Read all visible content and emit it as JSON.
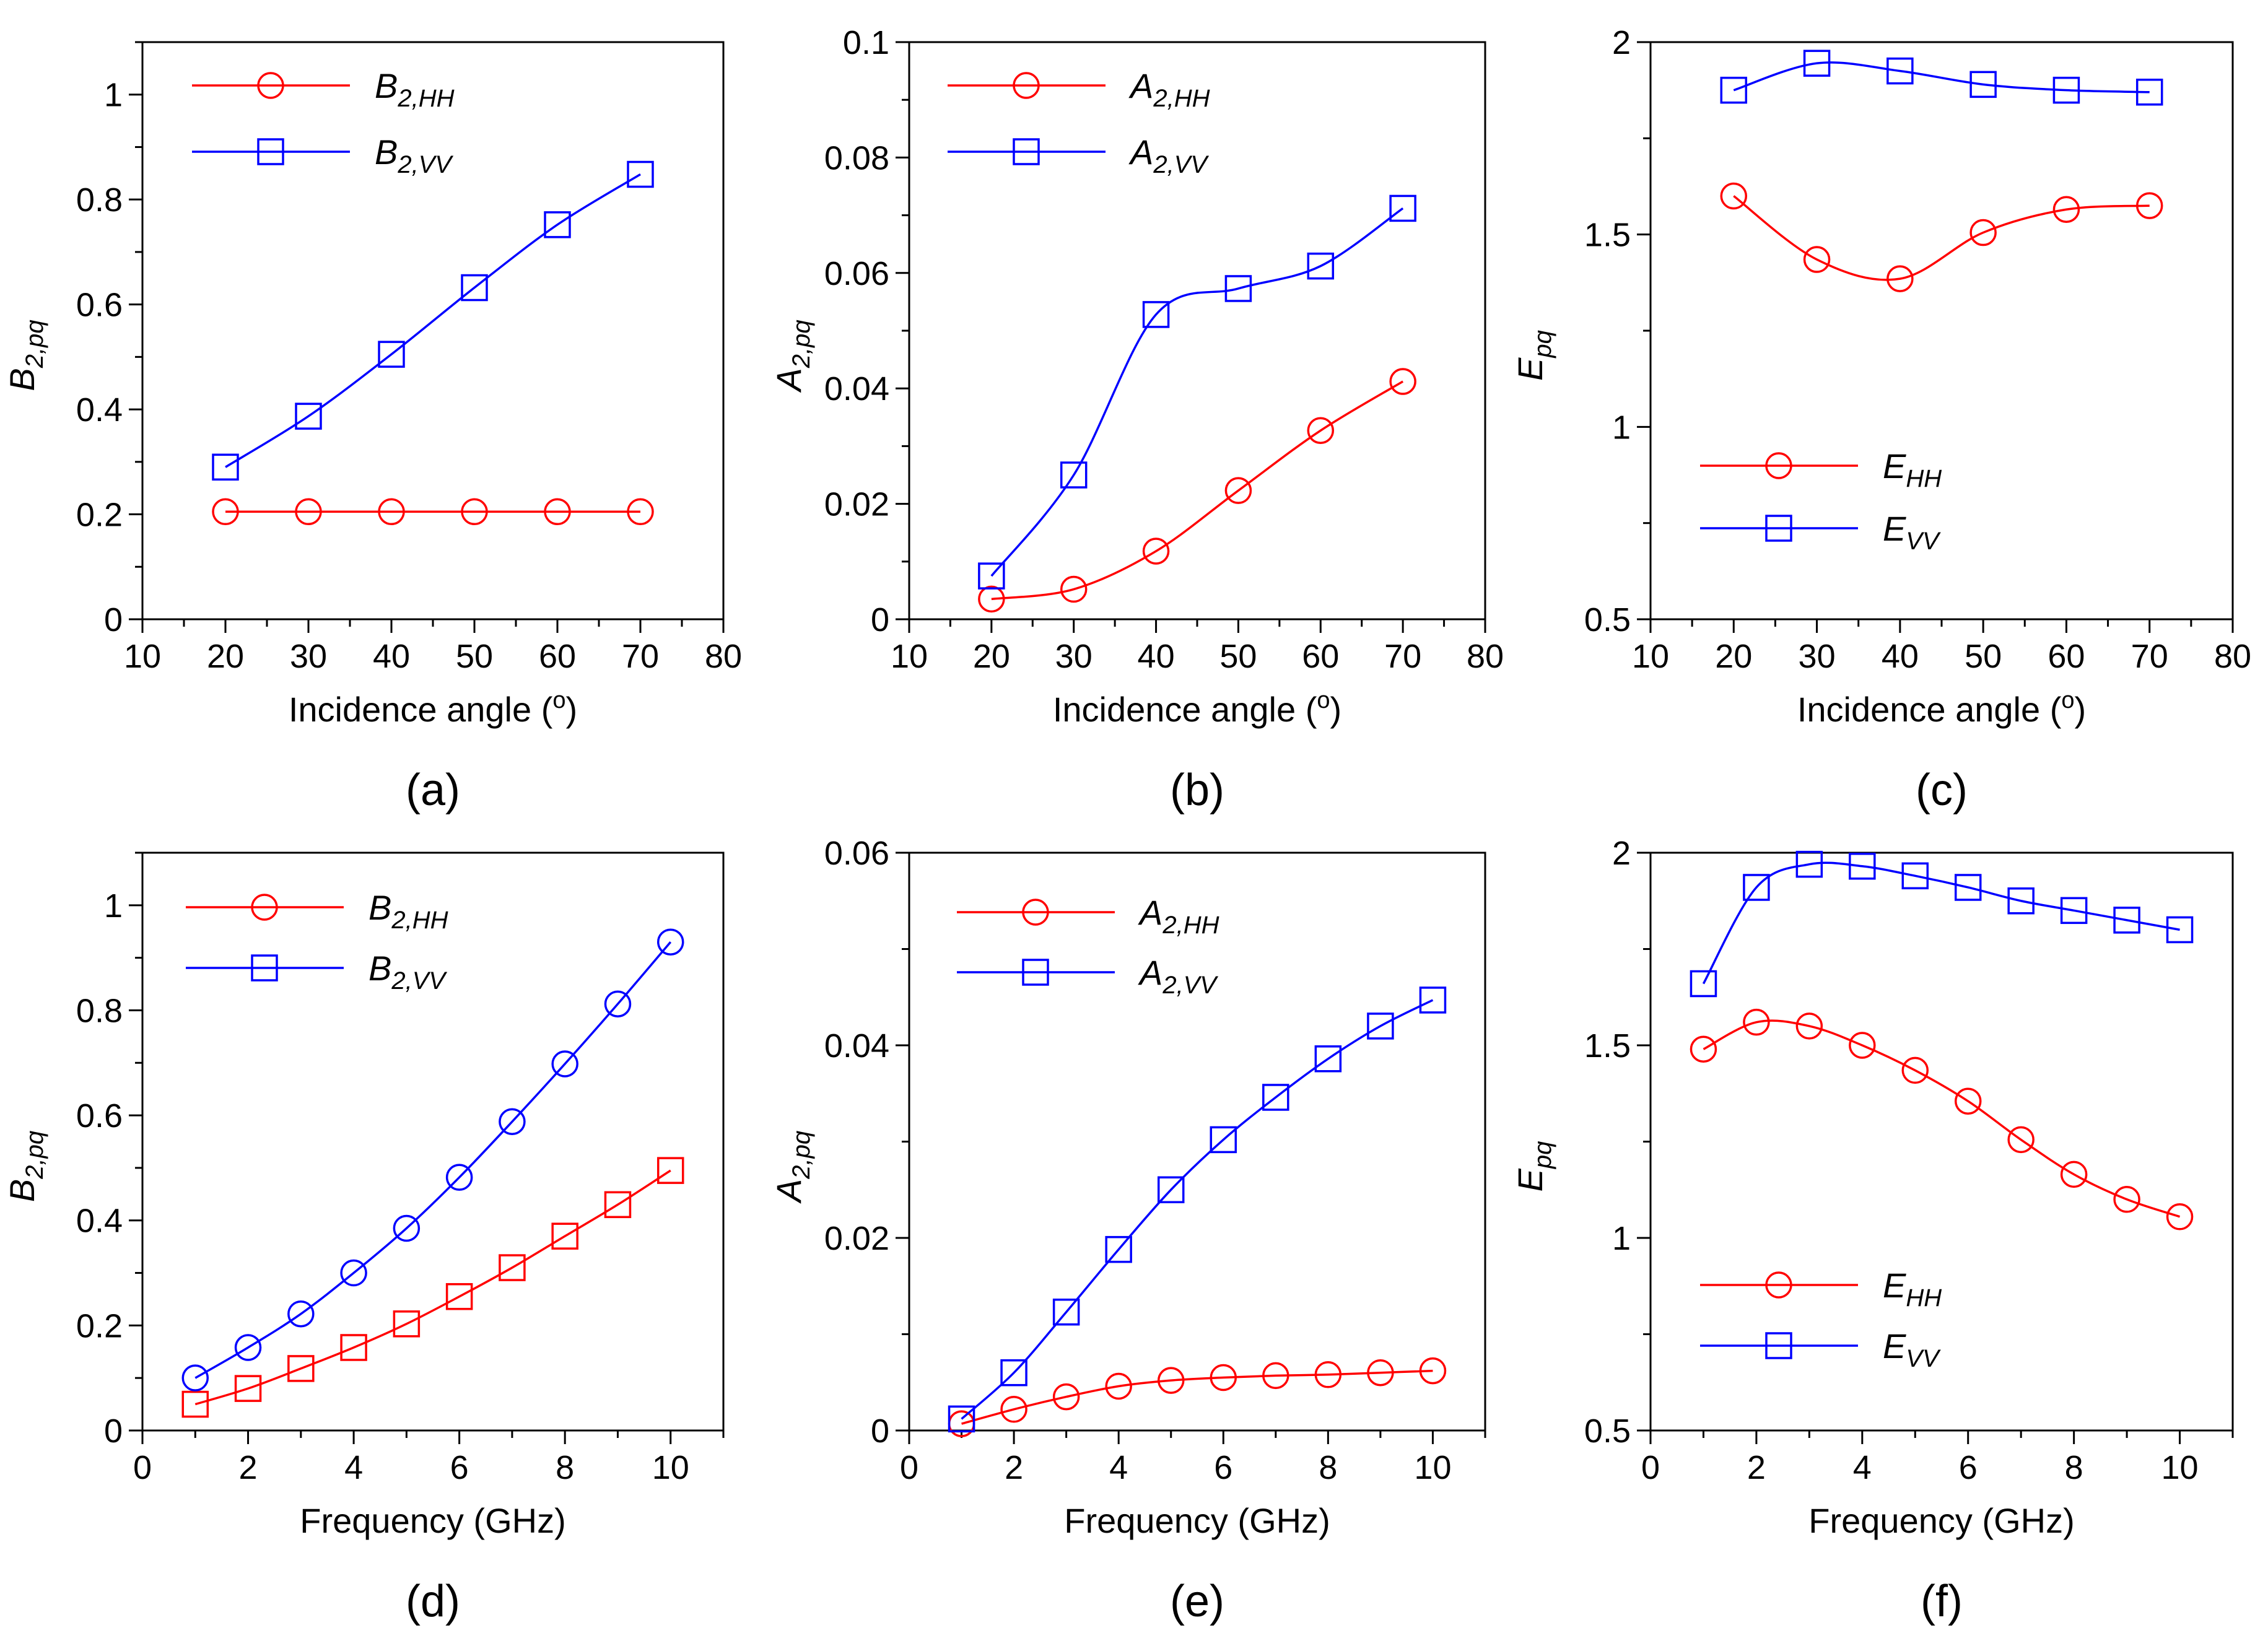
{
  "chart_data": [
    {
      "type": "line",
      "panel_label": "(a)",
      "xlabel": "Incidence angle (o)",
      "ylabel": "B2,pq",
      "xlim": [
        10,
        80
      ],
      "xticks": [
        "10",
        "20",
        "30",
        "40",
        "50",
        "60",
        "70",
        "80"
      ],
      "ylim": [
        0,
        1.1
      ],
      "yticks": [
        "0",
        "0.2",
        "0.4",
        "0.6",
        "0.8",
        "1"
      ],
      "legend_position": "top-left",
      "series": [
        {
          "name": "B2,HH",
          "base": "B",
          "sub": "2,HH",
          "color": "#ff0000",
          "marker": "circle",
          "x": [
            20,
            30,
            40,
            50,
            60,
            70
          ],
          "y": [
            0.205,
            0.205,
            0.205,
            0.205,
            0.205,
            0.205
          ]
        },
        {
          "name": "B2,VV",
          "base": "B",
          "sub": "2,VV",
          "color": "#0000ff",
          "marker": "square",
          "x": [
            20,
            30,
            40,
            50,
            60,
            70
          ],
          "y": [
            0.29,
            0.387,
            0.505,
            0.632,
            0.752,
            0.848
          ]
        }
      ]
    },
    {
      "type": "line",
      "panel_label": "(b)",
      "xlabel": "Incidence angle (o)",
      "ylabel": "A2,pq",
      "xlim": [
        10,
        80
      ],
      "xticks": [
        "10",
        "20",
        "30",
        "40",
        "50",
        "60",
        "70",
        "80"
      ],
      "ylim": [
        0,
        0.1
      ],
      "yticks": [
        "0",
        "0.02",
        "0.04",
        "0.06",
        "0.08",
        "0.1"
      ],
      "legend_position": "top-left",
      "series": [
        {
          "name": "A2,HH",
          "base": "A",
          "sub": "2,HH",
          "color": "#ff0000",
          "marker": "circle",
          "x": [
            20,
            30,
            40,
            50,
            60,
            70
          ],
          "y": [
            0.0035,
            0.0052,
            0.0118,
            0.0223,
            0.0327,
            0.0412
          ]
        },
        {
          "name": "A2,VV",
          "base": "A",
          "sub": "2,VV",
          "color": "#0000ff",
          "marker": "square",
          "x": [
            20,
            30,
            40,
            50,
            60,
            70
          ],
          "y": [
            0.0075,
            0.025,
            0.0528,
            0.0573,
            0.0612,
            0.0712
          ]
        }
      ]
    },
    {
      "type": "line",
      "panel_label": "(c)",
      "xlabel": "Incidence angle (o)",
      "ylabel": "Epq",
      "xlim": [
        10,
        80
      ],
      "xticks": [
        "10",
        "20",
        "30",
        "40",
        "50",
        "60",
        "70",
        "80"
      ],
      "ylim": [
        0.5,
        2
      ],
      "yticks": [
        "0.5",
        "1",
        "1.5",
        "2"
      ],
      "legend_position": "center-left",
      "series": [
        {
          "name": "EHH",
          "base": "E",
          "sub": "HH",
          "color": "#ff0000",
          "marker": "circle",
          "x": [
            20,
            30,
            40,
            50,
            60,
            70
          ],
          "y": [
            1.6,
            1.435,
            1.385,
            1.505,
            1.565,
            1.575
          ]
        },
        {
          "name": "EVV",
          "base": "E",
          "sub": "VV",
          "color": "#0000ff",
          "marker": "square",
          "x": [
            20,
            30,
            40,
            50,
            60,
            70
          ],
          "y": [
            1.875,
            1.945,
            1.925,
            1.89,
            1.875,
            1.87
          ]
        }
      ]
    },
    {
      "type": "line",
      "panel_label": "(d)",
      "xlabel": "Frequency (GHz)",
      "ylabel": "B2,pq",
      "xlim": [
        0,
        11
      ],
      "xticks": [
        "0",
        "2",
        "4",
        "6",
        "8",
        "10"
      ],
      "ylim": [
        0,
        1.1
      ],
      "yticks": [
        "0",
        "0.2",
        "0.4",
        "0.6",
        "0.8",
        "1"
      ],
      "legend_position": "top-left",
      "series": [
        {
          "name": "B2,HH",
          "base": "B",
          "sub": "2,HH",
          "color": "#ff0000",
          "marker": "circle",
          "legend_marker": "circle",
          "point_marker": "square",
          "point_color": "#ff0000",
          "x": [
            1,
            2,
            3,
            4,
            5,
            6,
            7,
            8,
            9,
            10
          ],
          "y": [
            0.05,
            0.08,
            0.118,
            0.158,
            0.203,
            0.255,
            0.31,
            0.37,
            0.43,
            0.495
          ]
        },
        {
          "name": "B2,VV",
          "base": "B",
          "sub": "2,VV",
          "color": "#0000ff",
          "marker": "square",
          "legend_marker": "square",
          "point_marker": "circle",
          "point_color": "#0000ff",
          "x": [
            1,
            2,
            3,
            4,
            5,
            6,
            7,
            8,
            9,
            10
          ],
          "y": [
            0.1,
            0.158,
            0.222,
            0.3,
            0.385,
            0.482,
            0.588,
            0.698,
            0.812,
            0.93
          ]
        }
      ]
    },
    {
      "type": "line",
      "panel_label": "(e)",
      "xlabel": "Frequency (GHz)",
      "ylabel": "A2,pq",
      "xlim": [
        0,
        11
      ],
      "xticks": [
        "0",
        "2",
        "4",
        "6",
        "8",
        "10"
      ],
      "ylim": [
        0,
        0.06
      ],
      "yticks": [
        "0",
        "0.02",
        "0.04",
        "0.06"
      ],
      "legend_position": "top-left",
      "series": [
        {
          "name": "A2,HH",
          "base": "A",
          "sub": "2,HH",
          "color": "#ff0000",
          "marker": "circle",
          "x": [
            1,
            2,
            3,
            4,
            5,
            6,
            7,
            8,
            9,
            10
          ],
          "y": [
            0.0007,
            0.0022,
            0.0035,
            0.0046,
            0.0052,
            0.0055,
            0.0057,
            0.0058,
            0.006,
            0.0062
          ]
        },
        {
          "name": "A2,VV",
          "base": "A",
          "sub": "2,VV",
          "color": "#0000ff",
          "marker": "square",
          "x": [
            1,
            2,
            3,
            4,
            5,
            6,
            7,
            8,
            9,
            10
          ],
          "y": [
            0.0012,
            0.006,
            0.0123,
            0.0188,
            0.025,
            0.0302,
            0.0346,
            0.0386,
            0.042,
            0.0447
          ]
        }
      ]
    },
    {
      "type": "line",
      "panel_label": "(f)",
      "xlabel": "Frequency (GHz)",
      "ylabel": "Epq",
      "xlim": [
        0,
        11
      ],
      "xticks": [
        "0",
        "2",
        "4",
        "6",
        "8",
        "10"
      ],
      "ylim": [
        0.5,
        2
      ],
      "yticks": [
        "0.5",
        "1",
        "1.5",
        "2"
      ],
      "legend_position": "center-left",
      "series": [
        {
          "name": "EHH",
          "base": "E",
          "sub": "HH",
          "color": "#ff0000",
          "marker": "circle",
          "x": [
            1,
            2,
            3,
            4,
            5,
            6,
            7,
            8,
            9,
            10
          ],
          "y": [
            1.49,
            1.56,
            1.55,
            1.5,
            1.435,
            1.355,
            1.255,
            1.165,
            1.1,
            1.055
          ]
        },
        {
          "name": "EVV",
          "base": "E",
          "sub": "VV",
          "color": "#0000ff",
          "marker": "square",
          "x": [
            1,
            2,
            3,
            4,
            5,
            6,
            7,
            8,
            9,
            10
          ],
          "y": [
            1.66,
            1.91,
            1.97,
            1.965,
            1.94,
            1.91,
            1.875,
            1.85,
            1.825,
            1.8
          ]
        }
      ]
    }
  ]
}
